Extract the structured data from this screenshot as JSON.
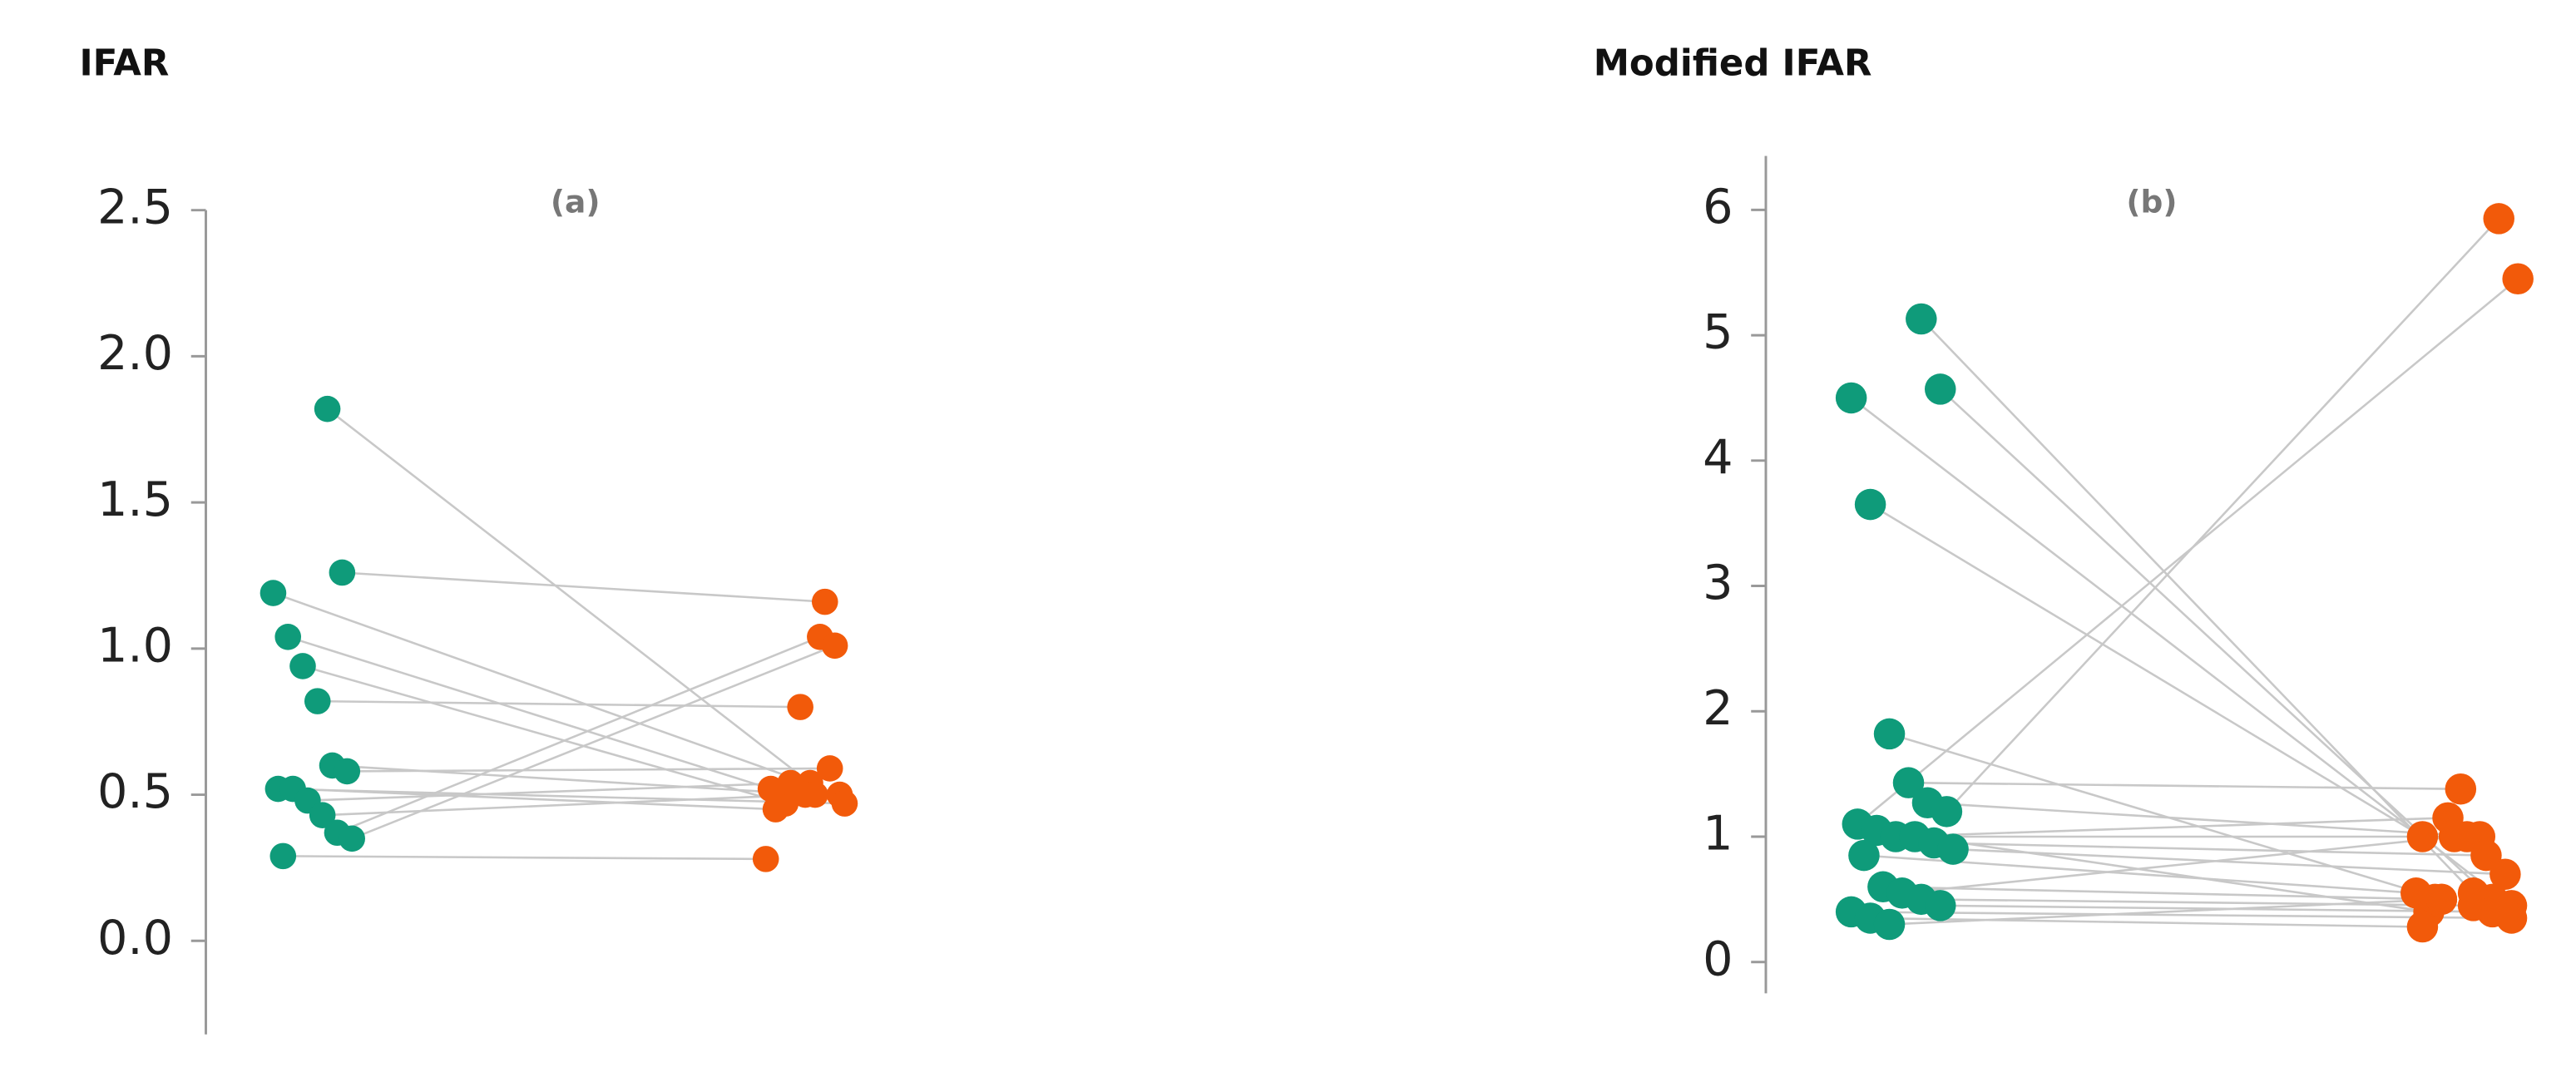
{
  "chart_data": [
    {
      "type": "paired-dot",
      "title": "IFAR",
      "subtitle": "(a)",
      "series": [
        {
          "color": "#0f9b7a",
          "values": [
            1.82,
            1.26,
            1.19,
            1.04,
            0.94,
            0.82,
            0.6,
            0.58,
            0.52,
            0.52,
            0.48,
            0.43,
            0.37,
            0.35,
            0.29
          ]
        },
        {
          "color": "#f25a0a",
          "values": [
            0.54,
            1.16,
            0.5,
            0.52,
            0.47,
            0.8,
            0.5,
            0.59,
            0.47,
            0.45,
            0.54,
            0.5,
            1.04,
            1.01,
            0.28
          ]
        }
      ],
      "line_color": "#c8c8c8",
      "ylim": [
        -0.32,
        2.5
      ],
      "yticks": [
        {
          "value": 0,
          "label": "0.0"
        },
        0.5,
        {
          "value": 1,
          "label": "1.0"
        },
        1.5,
        {
          "value": 2,
          "label": "2.0"
        },
        2.5
      ]
    },
    {
      "type": "paired-dot",
      "title": "Modified IFAR",
      "subtitle": "(b)",
      "series": [
        {
          "color": "#0f9b7a",
          "values": [
            5.13,
            4.57,
            4.5,
            3.65,
            1.82,
            1.43,
            1.27,
            1.2,
            1.1,
            1.05,
            1.0,
            1.0,
            0.95,
            0.9,
            0.85,
            0.6,
            0.55,
            0.5,
            0.45,
            0.4,
            0.35,
            0.3
          ]
        },
        {
          "color": "#f25a0a",
          "values": [
            0.55,
            0.5,
            0.45,
            1.0,
            0.5,
            1.38,
            1.0,
            5.93,
            5.45,
            0.4,
            1.15,
            1.0,
            0.85,
            0.7,
            0.55,
            0.5,
            1.0,
            0.45,
            0.4,
            0.35,
            0.28,
            0.5
          ]
        }
      ],
      "line_color": "#c8c8c8",
      "ylim": [
        -0.25,
        6.43
      ],
      "yticks": [
        0,
        1,
        2,
        3,
        4,
        5,
        6
      ]
    }
  ]
}
